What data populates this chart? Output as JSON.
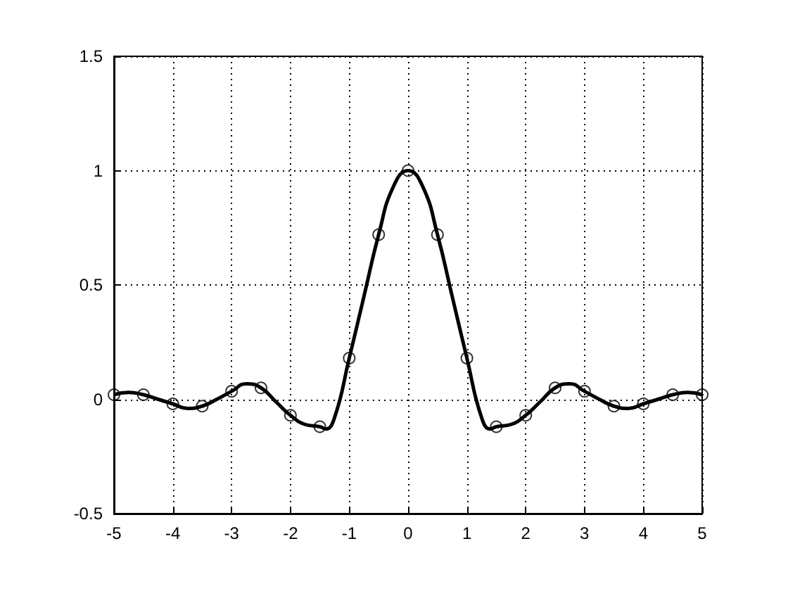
{
  "chart_data": {
    "type": "line",
    "xlim": [
      -5,
      5
    ],
    "xticks": [
      -5,
      -4,
      -3,
      -2,
      -1,
      0,
      1,
      2,
      3,
      4,
      5
    ],
    "ylim": [
      -0.5,
      1.5
    ],
    "yticks": [
      -0.5,
      0,
      0.5,
      1,
      1.5
    ],
    "grid": true,
    "series": [
      {
        "color": "#000000",
        "marker": "none",
        "x": [
          -5,
          -4.75,
          -4.5,
          -4.25,
          -4,
          -3.75,
          -3.5,
          -3.25,
          -3,
          -2.75,
          -2.5,
          -2.25,
          -2,
          -1.75,
          -1.5,
          -1.4,
          -1.25,
          -1,
          -0.75,
          -0.5,
          -0.25,
          0,
          0.25,
          0.5,
          0.75,
          1,
          1.25,
          1.4,
          1.5,
          1.75,
          2,
          2.25,
          2.5,
          2.75,
          3,
          3.25,
          3.5,
          3.75,
          4,
          4.25,
          4.5,
          4.75,
          5
        ],
        "values": [
          0.02,
          0.03,
          0.02,
          0,
          -0.02,
          -0.04,
          -0.03,
          0,
          0.035,
          0.068,
          0.05,
          -0.01,
          -0.07,
          -0.11,
          -0.12,
          -0.13,
          -0.08,
          0.18,
          0.45,
          0.72,
          0.93,
          1,
          0.93,
          0.72,
          0.45,
          0.18,
          -0.08,
          -0.13,
          -0.12,
          -0.11,
          -0.07,
          -0.01,
          0.05,
          0.068,
          0.035,
          0,
          -0.03,
          -0.04,
          -0.02,
          0,
          0.02,
          0.03,
          0.02
        ]
      },
      {
        "type": "scatter",
        "color": "#000000",
        "marker": "circle",
        "x": [
          -5,
          -4.5,
          -4,
          -3.5,
          -3,
          -2.5,
          -2,
          -1.5,
          -1,
          -0.5,
          0,
          0.5,
          1,
          1.5,
          2,
          2.5,
          3,
          3.5,
          4,
          4.5,
          5
        ],
        "values": [
          0.02,
          0.02,
          -0.02,
          -0.03,
          0.035,
          0.05,
          -0.07,
          -0.12,
          0.18,
          0.72,
          1,
          0.72,
          0.18,
          -0.12,
          -0.07,
          0.05,
          0.035,
          -0.03,
          -0.02,
          0.02,
          0.02
        ]
      }
    ]
  }
}
